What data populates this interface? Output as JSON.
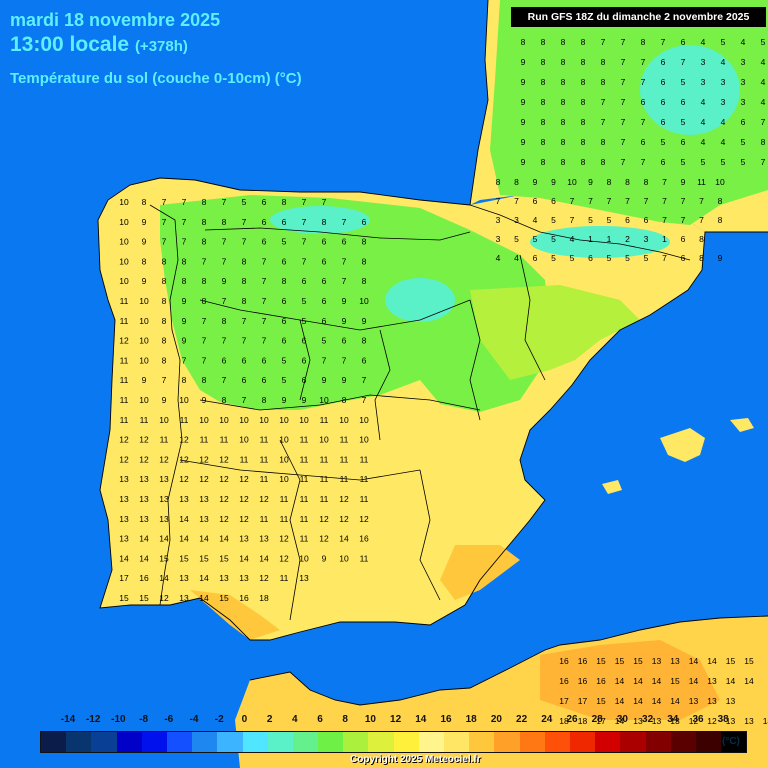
{
  "header": {
    "date": "mardi 18 novembre 2025",
    "time": "13:00 locale",
    "offset": "(+378h)",
    "parameter": "Température du sol (couche 0-10cm) (°C)",
    "run": "Run GFS 18Z du dimanche 2 novembre 2025"
  },
  "legend": {
    "labels": [
      "-14",
      "-12",
      "-10",
      "-8",
      "-6",
      "-4",
      "-2",
      "0",
      "2",
      "4",
      "6",
      "8",
      "10",
      "12",
      "14",
      "16",
      "18",
      "20",
      "22",
      "24",
      "26",
      "28",
      "30",
      "32",
      "34",
      "36",
      "38"
    ],
    "colors": [
      "#0b1b4a",
      "#08356e",
      "#0a3f96",
      "#0000c8",
      "#0011ee",
      "#1450ff",
      "#1e88f0",
      "#3cb4ff",
      "#50e6ff",
      "#5af0c8",
      "#64f08c",
      "#6ef046",
      "#aaf03c",
      "#dcf03c",
      "#fff03c",
      "#fff58c",
      "#ffe664",
      "#ffc83c",
      "#ffa028",
      "#ff7814",
      "#ff500a",
      "#f02800",
      "#d20000",
      "#aa0000",
      "#820000",
      "#5a0000",
      "#3c0000",
      "#000000"
    ],
    "unit": "(°C)"
  },
  "map": {
    "region": "Péninsule ibérique",
    "values_north_france": [
      "8 8 8 8 7 7 8 7 6 4 5 4 5",
      "9 8 8 8 8 7 7 6 7 3 4 3 4",
      "9 8 8 8 8 7 7 6 5 3 3 3 4",
      "9 8 8 8 7 7 6 6 6 4 3 3 4",
      "9 8 8 8 7 7 7 6 5 4 4 6 7",
      "9 8 8 8 8 7 6 5 6 4 4 5 8",
      "9 8 8 8 8 7 7 6 5 5 5 5 7"
    ],
    "values_pyrenees": [
      "8 8 9 9 10 9 8 8 8 7 9 11 10",
      "7 7 6 6 7 7 7 7 7 7 7 7 8",
      "3 3 4 5 7 5 5 6 6 7 7 7 8",
      "3 5 5 5 4 1 1 2 3 1 6 8",
      "4 4 6 5 5 6 5 5 5 7 6 8 9"
    ],
    "values_iberia": [
      "10 8 7 7 8 7 5 6 8 7 7",
      "10 9 7 7 8 8 7 6 6 7 8 7 6",
      "10 9 7 7 8 7 7 6 5 7 6 6 8",
      "10 8 8 8 7 7 8 7 6 7 6 7 8",
      "10 9 8 8 8 9 8 7 8 6 6 7 8",
      "11 10 8 9 8 7 8 7 6 5 6 9 10",
      "11 10 8 9 7 8 7 7 6 5 6 9 9",
      "12 10 8 9 7 7 7 7 6 6 5 6 8",
      "11 10 8 7 7 6 6 6 5 6 7 7 6",
      "11 9 7 8 8 7 6 6 5 6 9 9 7",
      "11 10 9 10 9 8 7 8 9 9 10 8 7",
      "11 11 10 11 10 10 10 10 10 10 11 10 10",
      "12 12 11 12 11 11 10 11 10 11 10 11 10",
      "12 12 12 12 12 12 11 11 10 11 11 11 11",
      "13 13 13 12 12 12 12 11 10 11 11 11 11",
      "13 13 13 13 13 12 12 12 11 11 11 12 11",
      "13 13 13 14 13 12 12 11 11 11 12 12 12",
      "13 14 14 14 14 14 13 13 12 11 12 14 16",
      "14 14 15 15 15 15 14 14 12 10 9 10 11",
      "17 16 14 13 14 13 13 12 11 13",
      "15 15 12 13 14 15 16 18"
    ],
    "values_africa": [
      "16 16 15 15 15 13 13 14 14 15 15",
      "16 16 16 14 14 14 15 14 13 14 14",
      "17 17 15 14 14 14 14 13 13 13",
      "18 18 17 14 13 13 13 12 12 13 13 14"
    ]
  },
  "footer": {
    "copyright": "Copyright 2025 Meteociel.fr"
  }
}
